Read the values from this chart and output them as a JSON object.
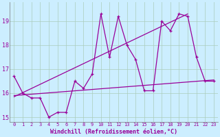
{
  "xlabel": "Windchill (Refroidissement éolien,°C)",
  "background_color": "#cceeff",
  "line_color": "#990099",
  "grid_color": "#aaccbb",
  "x_values": [
    0,
    1,
    2,
    3,
    4,
    5,
    6,
    7,
    8,
    9,
    10,
    11,
    12,
    13,
    14,
    15,
    16,
    17,
    18,
    19,
    20,
    21,
    22,
    23
  ],
  "series1": [
    16.7,
    16.0,
    15.8,
    15.8,
    15.0,
    15.2,
    15.2,
    16.5,
    16.2,
    16.8,
    19.3,
    17.5,
    19.2,
    18.0,
    17.4,
    16.1,
    16.1,
    19.0,
    18.6,
    19.3,
    19.2,
    17.5,
    16.5,
    16.5
  ],
  "trend_line_x": [
    0,
    20
  ],
  "trend_line_y": [
    15.85,
    19.3
  ],
  "flat_line_x": [
    0,
    23
  ],
  "flat_line_y": [
    15.9,
    16.55
  ],
  "ylim": [
    14.8,
    19.8
  ],
  "xlim": [
    -0.5,
    23.5
  ],
  "yticks": [
    15,
    16,
    17,
    18,
    19
  ],
  "xticks": [
    0,
    1,
    2,
    3,
    4,
    5,
    6,
    7,
    8,
    9,
    10,
    11,
    12,
    13,
    14,
    15,
    16,
    17,
    18,
    19,
    20,
    21,
    22,
    23
  ]
}
